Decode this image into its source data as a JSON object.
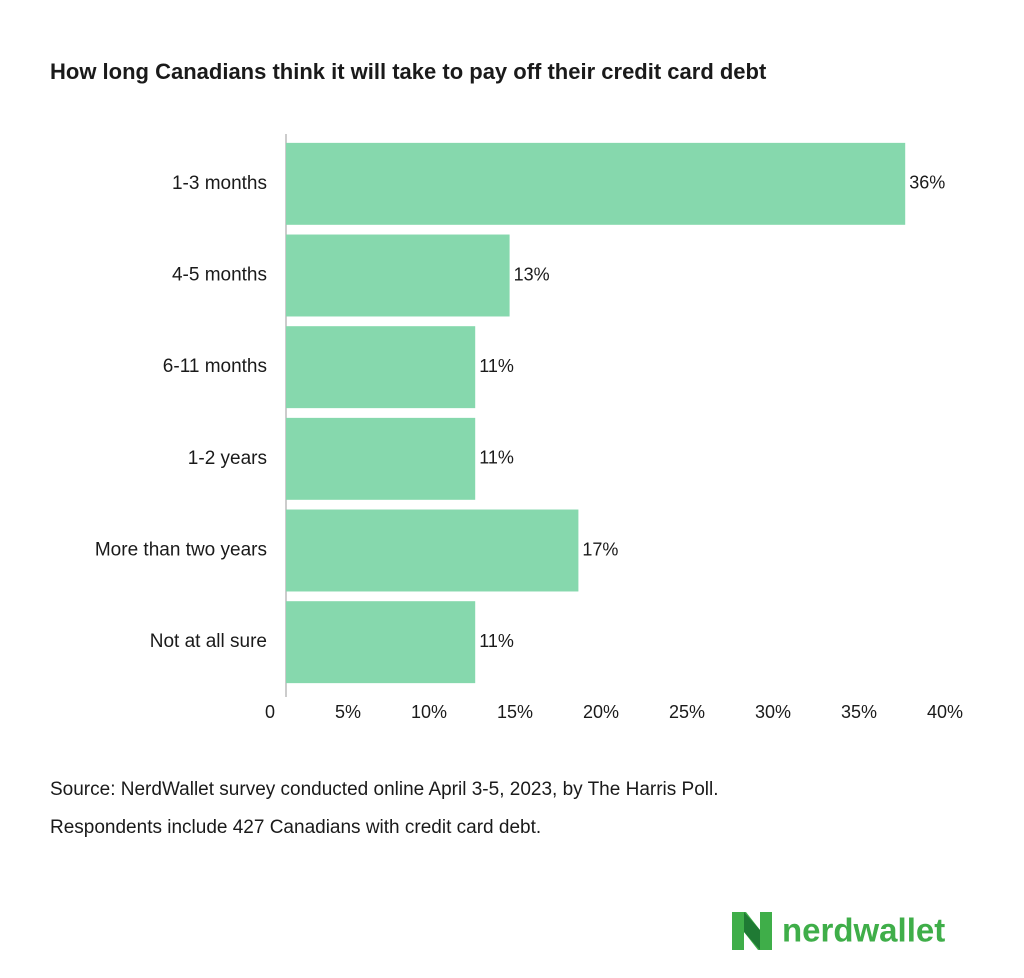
{
  "chart_data": {
    "type": "bar",
    "orientation": "horizontal",
    "title": "How long Canadians think it will take to pay off their credit card debt",
    "categories": [
      "1-3 months",
      "4-5 months",
      "6-11 months",
      "1-2 years",
      "More than two years",
      "Not at all sure"
    ],
    "values": [
      36,
      13,
      11,
      11,
      17,
      11
    ],
    "value_labels": [
      "36%",
      "13%",
      "11%",
      "11%",
      "17%",
      "11%"
    ],
    "color": "#86d8ad",
    "xlim": [
      0,
      40
    ],
    "xticks": [
      0,
      {
        "value": 5,
        "label": "5%"
      },
      {
        "value": 10,
        "label": "10%"
      },
      {
        "value": 15,
        "label": "15%"
      },
      {
        "value": 20,
        "label": "20%"
      },
      {
        "value": 25,
        "label": "25%"
      },
      {
        "value": 30,
        "label": "30%"
      },
      {
        "value": 35,
        "label": "35%"
      },
      {
        "value": 40,
        "label": "40%"
      }
    ],
    "grid": false,
    "source": [
      "Source: NerdWallet survey conducted online April 3-5, 2023, by The Harris Poll.",
      "Respondents include 427 Canadians with credit card debt."
    ],
    "logo": "nerdwallet"
  }
}
